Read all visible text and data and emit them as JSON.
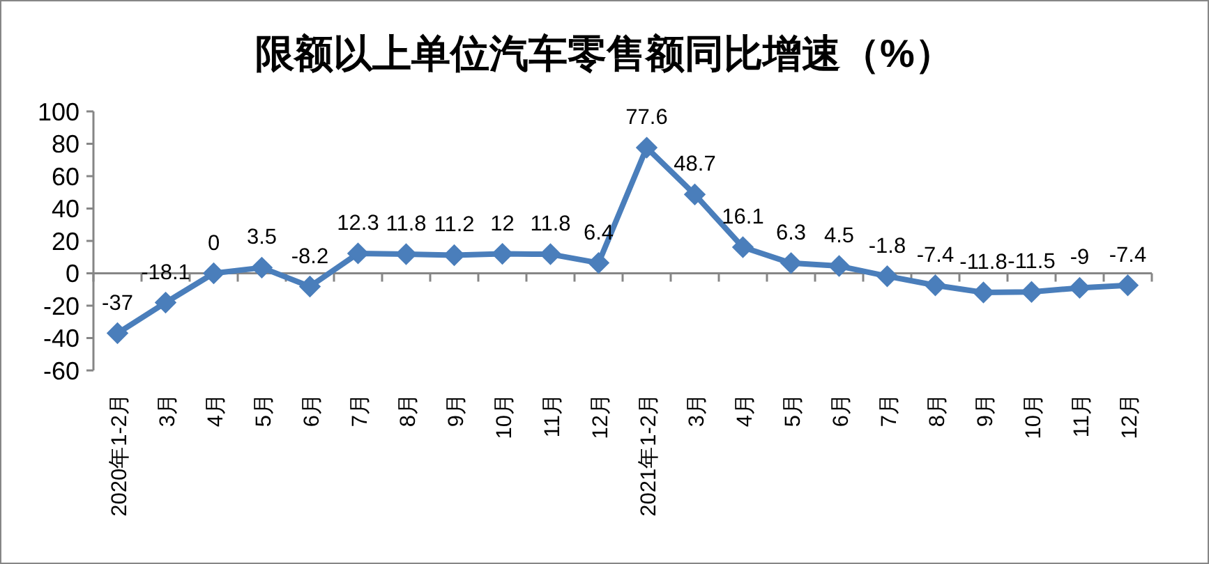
{
  "chart_data": {
    "type": "line",
    "title": "限额以上单位汽车零售额同比增速（%）",
    "categories": [
      "2020年1-2月",
      "3月",
      "4月",
      "5月",
      "6月",
      "7月",
      "8月",
      "9月",
      "10月",
      "11月",
      "12月",
      "2021年1-2月",
      "3月",
      "4月",
      "5月",
      "6月",
      "7月",
      "8月",
      "9月",
      "10月",
      "11月",
      "12月"
    ],
    "series": [
      {
        "color": "#4a7ebb",
        "values": [
          -37,
          -18.1,
          0,
          3.5,
          -8.2,
          12.3,
          11.8,
          11.2,
          12,
          11.8,
          6.4,
          77.6,
          48.7,
          16.1,
          6.3,
          4.5,
          -1.8,
          -7.4,
          -11.8,
          -11.5,
          -9,
          -7.4
        ]
      }
    ],
    "ylim": [
      -60,
      100
    ],
    "yticks": [
      -60,
      -40,
      -20,
      0,
      20,
      40,
      60,
      80,
      100
    ],
    "marker": "diamond",
    "line_style": "solid",
    "data_labels": true
  }
}
